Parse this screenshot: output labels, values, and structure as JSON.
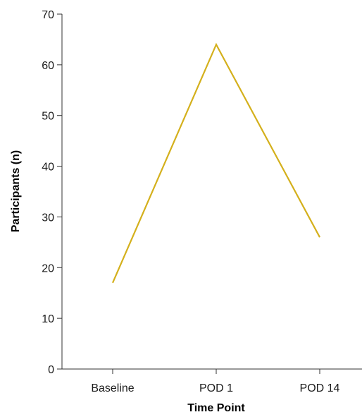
{
  "chart_data": {
    "type": "line",
    "title": "",
    "xlabel": "Time Point",
    "ylabel": "Participants (n)",
    "categories": [
      "Baseline",
      "POD 1",
      "POD 14"
    ],
    "series": [
      {
        "values": [
          17,
          64,
          26
        ],
        "color": "#d4b01c"
      }
    ],
    "ylim": [
      0,
      70
    ],
    "yticks": [
      0,
      10,
      20,
      30,
      40,
      50,
      60,
      70
    ],
    "grid": false,
    "legend": "none"
  }
}
